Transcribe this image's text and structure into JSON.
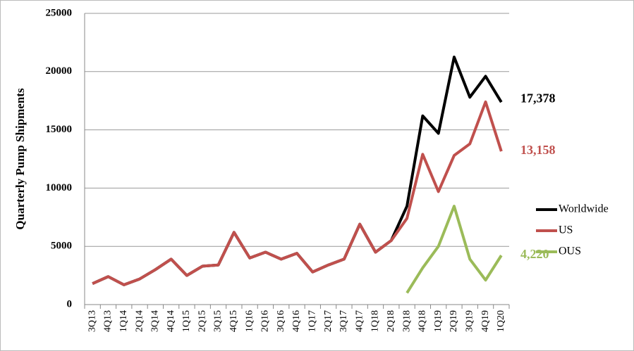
{
  "chart_data": {
    "type": "line",
    "y_label": "Quarterly Pump Shipments",
    "categories": [
      "3Q13",
      "4Q13",
      "1Q14",
      "2Q14",
      "3Q14",
      "4Q14",
      "1Q15",
      "2Q15",
      "3Q15",
      "4Q15",
      "1Q16",
      "2Q16",
      "3Q16",
      "4Q16",
      "1Q17",
      "2Q17",
      "3Q17",
      "4Q17",
      "1Q18",
      "2Q18",
      "3Q18",
      "4Q18",
      "1Q19",
      "2Q19",
      "3Q19",
      "4Q19",
      "1Q20"
    ],
    "series": [
      {
        "name": "Worldwide",
        "color": "#000000",
        "values": [
          1800,
          2400,
          1700,
          2200,
          3000,
          3900,
          2500,
          3300,
          3400,
          6200,
          4000,
          4500,
          3900,
          4400,
          2800,
          3400,
          3900,
          6900,
          4500,
          5500,
          8450,
          16200,
          14700,
          21250,
          17800,
          19600,
          17378
        ],
        "value_labels": [
          null,
          null,
          null,
          null,
          null,
          null,
          null,
          null,
          null,
          null,
          null,
          null,
          null,
          null,
          null,
          null,
          null,
          null,
          null,
          null,
          null,
          null,
          null,
          null,
          null,
          null,
          "17,378"
        ]
      },
      {
        "name": "US",
        "color": "#c0504d",
        "values": [
          1800,
          2400,
          1700,
          2200,
          3000,
          3900,
          2500,
          3300,
          3400,
          6200,
          4000,
          4500,
          3900,
          4400,
          2800,
          3400,
          3900,
          6900,
          4500,
          5500,
          7400,
          12900,
          9700,
          12800,
          13800,
          17400,
          13158
        ],
        "value_labels": [
          null,
          null,
          null,
          null,
          null,
          null,
          null,
          null,
          null,
          null,
          null,
          null,
          null,
          null,
          null,
          null,
          null,
          null,
          null,
          null,
          null,
          null,
          null,
          null,
          null,
          null,
          "13,158"
        ]
      },
      {
        "name": "OUS",
        "color": "#9bbb59",
        "values": [
          null,
          null,
          null,
          null,
          null,
          null,
          null,
          null,
          null,
          null,
          null,
          null,
          null,
          null,
          null,
          null,
          null,
          null,
          null,
          null,
          1000,
          3150,
          5000,
          8450,
          3900,
          2100,
          4220
        ],
        "value_labels": [
          null,
          null,
          null,
          null,
          null,
          null,
          null,
          null,
          null,
          null,
          null,
          null,
          null,
          null,
          null,
          null,
          null,
          null,
          null,
          null,
          null,
          null,
          null,
          null,
          null,
          null,
          "4,220"
        ]
      }
    ],
    "ylim": [
      0,
      25000
    ],
    "yticks": [
      0,
      5000,
      10000,
      15000,
      20000,
      25000
    ],
    "grid": true,
    "legend": "right"
  }
}
